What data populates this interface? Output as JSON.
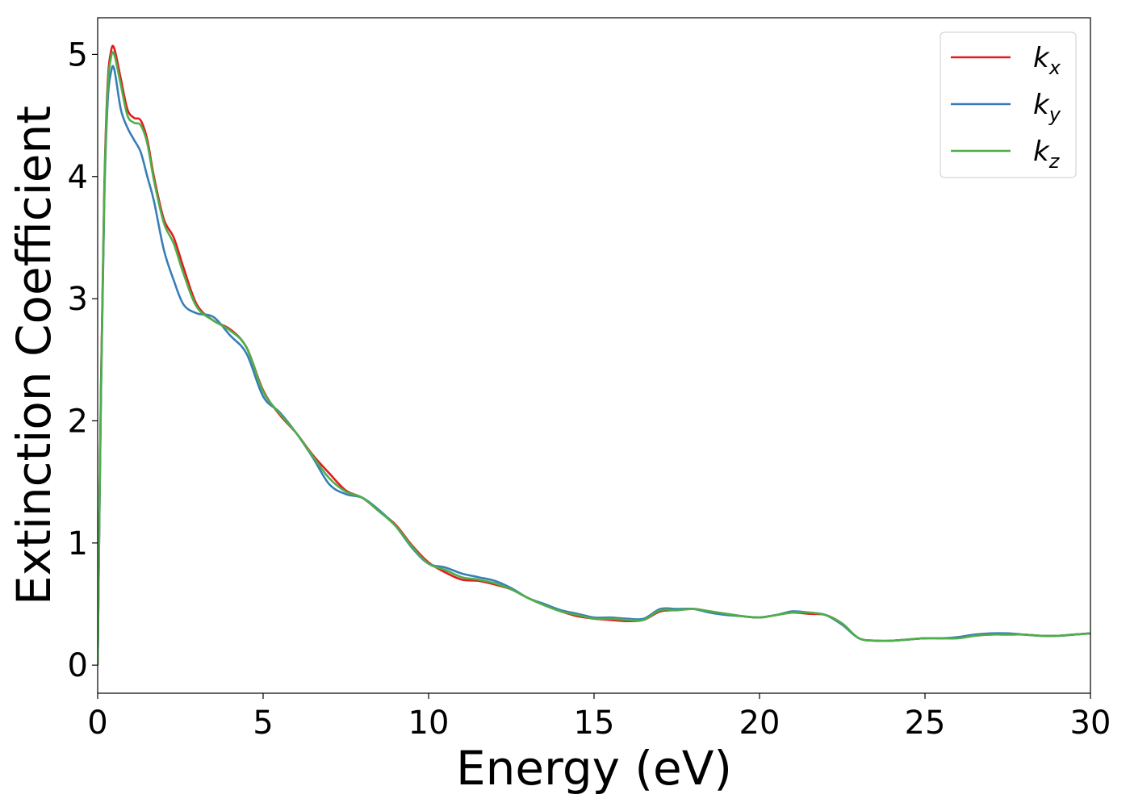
{
  "chart_data": {
    "type": "line",
    "title": "",
    "xlabel": "Energy (eV)",
    "ylabel": "Extinction Coefficient",
    "xlim": [
      0,
      30
    ],
    "ylim": [
      -0.23,
      5.3
    ],
    "xticks": [
      0,
      5,
      10,
      15,
      20,
      25,
      30
    ],
    "yticks": [
      0,
      1,
      2,
      3,
      4,
      5
    ],
    "xtick_labels": [
      "0",
      "5",
      "10",
      "15",
      "20",
      "25",
      "30"
    ],
    "ytick_labels": [
      "0",
      "1",
      "2",
      "3",
      "4",
      "5"
    ],
    "grid": false,
    "legend": {
      "location": "top-right",
      "entries": [
        {
          "base": "k",
          "sub": "x",
          "series": 0
        },
        {
          "base": "k",
          "sub": "y",
          "series": 1
        },
        {
          "base": "k",
          "sub": "z",
          "series": 2
        }
      ]
    },
    "series": [
      {
        "name": "k_x",
        "color": "#e41a1c",
        "x": [
          0,
          0.1,
          0.2,
          0.3,
          0.4,
          0.5,
          0.7,
          0.9,
          1.1,
          1.3,
          1.5,
          1.7,
          2.0,
          2.3,
          2.6,
          3.0,
          3.5,
          4.0,
          4.5,
          5.0,
          5.5,
          6.0,
          6.5,
          7.0,
          7.5,
          8.0,
          8.5,
          9.0,
          9.5,
          10.0,
          10.5,
          11.0,
          11.5,
          12.0,
          12.5,
          13.0,
          13.5,
          14.0,
          14.5,
          15.0,
          15.5,
          16.0,
          16.5,
          17.0,
          17.5,
          18.0,
          18.5,
          19.0,
          19.5,
          20.0,
          20.5,
          21.0,
          21.5,
          22.0,
          22.5,
          23.0,
          23.5,
          24.0,
          24.5,
          25.0,
          25.5,
          26.0,
          26.5,
          27.0,
          27.5,
          28.0,
          28.5,
          29.0,
          29.5,
          30.0
        ],
        "y": [
          0.0,
          2.3,
          3.9,
          4.75,
          5.02,
          5.05,
          4.8,
          4.55,
          4.48,
          4.46,
          4.3,
          4.0,
          3.65,
          3.5,
          3.25,
          2.95,
          2.82,
          2.75,
          2.6,
          2.25,
          2.05,
          1.9,
          1.72,
          1.57,
          1.43,
          1.37,
          1.26,
          1.15,
          0.98,
          0.84,
          0.76,
          0.7,
          0.69,
          0.66,
          0.62,
          0.55,
          0.49,
          0.44,
          0.4,
          0.38,
          0.37,
          0.36,
          0.37,
          0.44,
          0.45,
          0.46,
          0.44,
          0.42,
          0.4,
          0.39,
          0.41,
          0.43,
          0.42,
          0.41,
          0.34,
          0.22,
          0.2,
          0.2,
          0.21,
          0.22,
          0.22,
          0.22,
          0.24,
          0.25,
          0.25,
          0.25,
          0.24,
          0.24,
          0.25,
          0.26
        ]
      },
      {
        "name": "k_y",
        "color": "#377eb8",
        "x": [
          0,
          0.1,
          0.2,
          0.3,
          0.4,
          0.5,
          0.7,
          0.9,
          1.1,
          1.3,
          1.5,
          1.7,
          2.0,
          2.3,
          2.6,
          3.0,
          3.5,
          4.0,
          4.5,
          5.0,
          5.5,
          6.0,
          6.5,
          7.0,
          7.5,
          8.0,
          8.5,
          9.0,
          9.5,
          10.0,
          10.5,
          11.0,
          11.5,
          12.0,
          12.5,
          13.0,
          13.5,
          14.0,
          14.5,
          15.0,
          15.5,
          16.0,
          16.5,
          17.0,
          17.5,
          18.0,
          18.5,
          19.0,
          19.5,
          20.0,
          20.5,
          21.0,
          21.5,
          22.0,
          22.5,
          23.0,
          23.5,
          24.0,
          24.5,
          25.0,
          25.5,
          26.0,
          26.5,
          27.0,
          27.5,
          28.0,
          28.5,
          29.0,
          29.5,
          30.0
        ],
        "y": [
          0.0,
          2.2,
          3.8,
          4.6,
          4.85,
          4.88,
          4.55,
          4.4,
          4.3,
          4.2,
          4.0,
          3.8,
          3.4,
          3.15,
          2.95,
          2.88,
          2.85,
          2.7,
          2.55,
          2.2,
          2.07,
          1.9,
          1.7,
          1.48,
          1.4,
          1.37,
          1.27,
          1.14,
          0.96,
          0.83,
          0.8,
          0.75,
          0.72,
          0.69,
          0.63,
          0.55,
          0.5,
          0.45,
          0.42,
          0.39,
          0.39,
          0.38,
          0.38,
          0.46,
          0.46,
          0.46,
          0.43,
          0.41,
          0.4,
          0.39,
          0.41,
          0.44,
          0.43,
          0.41,
          0.33,
          0.22,
          0.2,
          0.2,
          0.21,
          0.22,
          0.22,
          0.23,
          0.25,
          0.26,
          0.26,
          0.25,
          0.24,
          0.24,
          0.25,
          0.26
        ]
      },
      {
        "name": "k_z",
        "color": "#4daf4a",
        "x": [
          0,
          0.1,
          0.2,
          0.3,
          0.4,
          0.5,
          0.7,
          0.9,
          1.1,
          1.3,
          1.5,
          1.7,
          2.0,
          2.3,
          2.6,
          3.0,
          3.5,
          4.0,
          4.5,
          5.0,
          5.5,
          6.0,
          6.5,
          7.0,
          7.5,
          8.0,
          8.5,
          9.0,
          9.5,
          10.0,
          10.5,
          11.0,
          11.5,
          12.0,
          12.5,
          13.0,
          13.5,
          14.0,
          14.5,
          15.0,
          15.5,
          16.0,
          16.5,
          17.0,
          17.5,
          18.0,
          18.5,
          19.0,
          19.5,
          20.0,
          20.5,
          21.0,
          21.5,
          22.0,
          22.5,
          23.0,
          23.5,
          24.0,
          24.5,
          25.0,
          25.5,
          26.0,
          26.5,
          27.0,
          27.5,
          28.0,
          28.5,
          29.0,
          29.5,
          30.0
        ],
        "y": [
          0.0,
          2.25,
          3.85,
          4.7,
          4.97,
          5.0,
          4.75,
          4.5,
          4.44,
          4.42,
          4.27,
          3.97,
          3.62,
          3.45,
          3.2,
          2.93,
          2.82,
          2.74,
          2.6,
          2.24,
          2.06,
          1.9,
          1.71,
          1.53,
          1.42,
          1.37,
          1.26,
          1.14,
          0.97,
          0.83,
          0.78,
          0.72,
          0.7,
          0.67,
          0.62,
          0.55,
          0.49,
          0.44,
          0.41,
          0.38,
          0.38,
          0.37,
          0.37,
          0.45,
          0.45,
          0.46,
          0.44,
          0.42,
          0.4,
          0.39,
          0.41,
          0.43,
          0.43,
          0.41,
          0.34,
          0.22,
          0.2,
          0.2,
          0.21,
          0.22,
          0.22,
          0.22,
          0.24,
          0.25,
          0.25,
          0.25,
          0.24,
          0.24,
          0.25,
          0.26
        ]
      }
    ]
  }
}
